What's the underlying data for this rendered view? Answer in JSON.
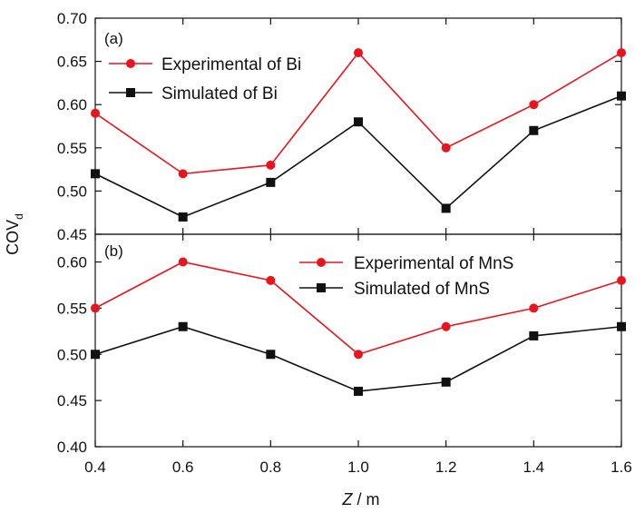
{
  "chart_data": {
    "type": "line",
    "xlabel_italic": "Z",
    "xlabel_rest": " / m",
    "ylabel_main": "COV",
    "ylabel_sub": "d",
    "x": [
      0.4,
      0.6,
      0.8,
      1.0,
      1.2,
      1.4,
      1.6
    ],
    "x_tick_labels": [
      "0.4",
      "0.6",
      "0.8",
      "1.0",
      "1.2",
      "1.4",
      "1.6"
    ],
    "xlim": [
      0.4,
      1.6
    ],
    "grid": false,
    "panels": [
      {
        "label": "(a)",
        "ylim": [
          0.45,
          0.7
        ],
        "y_ticks": [
          "0.45",
          "0.50",
          "0.55",
          "0.60",
          "0.65",
          "0.70"
        ],
        "legend_placement": "top-left",
        "series": [
          {
            "name": "Experimental of Bi",
            "color": "#e8141e",
            "marker": "circle",
            "values": [
              0.59,
              0.52,
              0.53,
              0.66,
              0.55,
              0.6,
              0.66
            ]
          },
          {
            "name": "Simulated of Bi",
            "color": "#111111",
            "marker": "square",
            "values": [
              0.52,
              0.47,
              0.51,
              0.58,
              0.48,
              0.57,
              0.61
            ]
          }
        ]
      },
      {
        "label": "(b)",
        "ylim": [
          0.4,
          0.63
        ],
        "y_ticks": [
          "0.40",
          "0.45",
          "0.50",
          "0.55",
          "0.60"
        ],
        "legend_placement": "top-right",
        "series": [
          {
            "name": "Experimental of MnS",
            "color": "#e8141e",
            "marker": "circle",
            "values": [
              0.55,
              0.6,
              0.58,
              0.5,
              0.53,
              0.55,
              0.58
            ]
          },
          {
            "name": "Simulated of MnS",
            "color": "#111111",
            "marker": "square",
            "values": [
              0.5,
              0.53,
              0.5,
              0.46,
              0.47,
              0.52,
              0.53
            ]
          }
        ]
      }
    ]
  }
}
